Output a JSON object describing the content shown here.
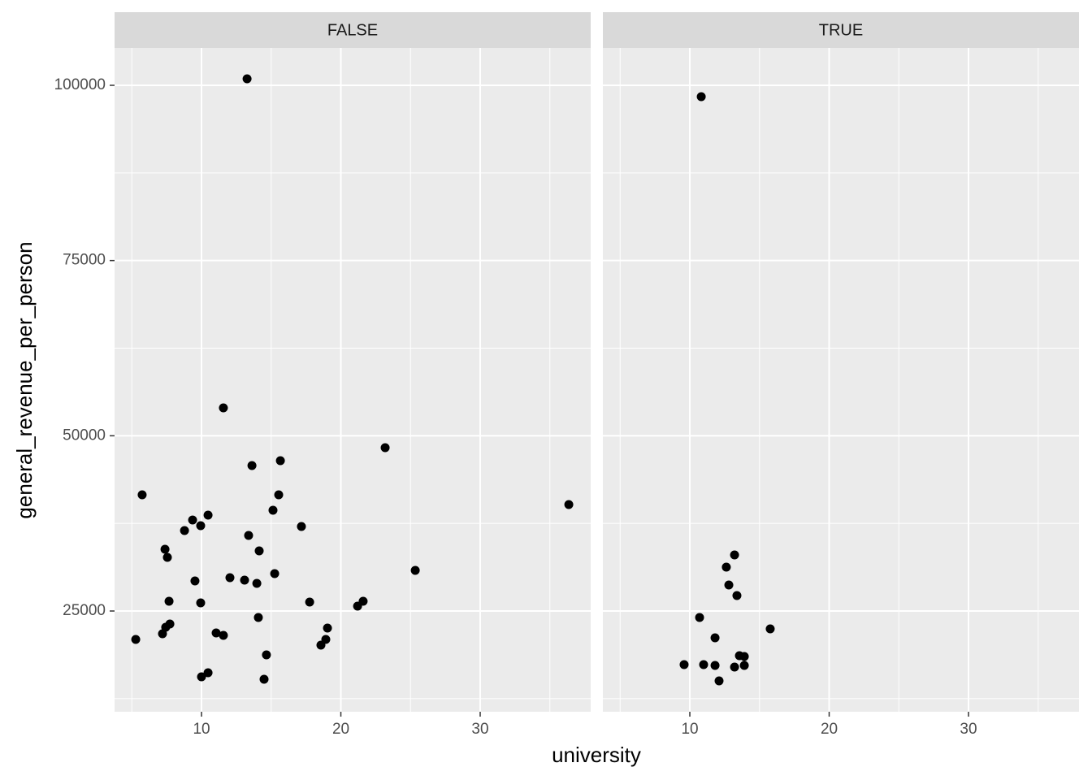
{
  "chart_data": [
    {
      "type": "scatter",
      "title": "FALSE",
      "x_label": "university",
      "y_label": "general_revenue_per_person",
      "color": "#000000",
      "grid": true,
      "xlim": [
        3.76,
        37.93
      ],
      "ylim": [
        10627,
        105332
      ],
      "xticks": [
        10,
        20,
        30
      ],
      "yticks": [
        25000,
        50000,
        75000,
        100000
      ],
      "minor_xticks": [
        5,
        15,
        25,
        35
      ],
      "minor_yticks": [
        12500,
        37500,
        62500,
        87500
      ],
      "x": [
        13.27,
        11.57,
        23.18,
        13.62,
        15.66,
        5.74,
        15.54,
        36.36,
        10.47,
        9.36,
        15.13,
        8.78,
        9.94,
        17.17,
        13.38,
        14.14,
        7.38,
        7.55,
        25.34,
        15.25,
        12.04,
        13.09,
        13.97,
        9.53,
        7.67,
        9.94,
        17.76,
        21.6,
        21.2,
        14.08,
        7.73,
        7.43,
        19.04,
        7.2,
        11.05,
        11.57,
        5.28,
        18.92,
        18.57,
        14.66,
        10.47,
        10.0,
        14.49
      ],
      "values": [
        100924,
        53979,
        48299,
        45749,
        46444,
        41576,
        41576,
        40185,
        38678,
        37983,
        39373,
        36476,
        37171,
        37055,
        35780,
        33578,
        33810,
        32650,
        30796,
        30332,
        29753,
        29405,
        28941,
        29289,
        26391,
        26159,
        26275,
        26391,
        25695,
        24073,
        23145,
        22682,
        22566,
        21754,
        21870,
        21522,
        20943,
        20943,
        20132,
        18741,
        16190,
        15611,
        15263
      ]
    },
    {
      "type": "scatter",
      "title": "TRUE",
      "color": "#000000",
      "grid": true,
      "xlim": [
        3.76,
        37.93
      ],
      "ylim": [
        10627,
        105332
      ],
      "xticks": [
        10,
        20,
        30
      ],
      "yticks": [
        25000,
        50000,
        75000,
        100000
      ],
      "minor_xticks": [
        5,
        15,
        25,
        35
      ],
      "minor_yticks": [
        12500,
        37500,
        62500,
        87500
      ],
      "x": [
        10.82,
        13.21,
        12.62,
        12.8,
        13.38,
        10.7,
        15.77,
        11.81,
        13.56,
        13.91,
        9.59,
        10.99,
        11.81,
        13.21,
        13.91,
        12.1
      ],
      "values": [
        98375,
        32998,
        31259,
        28709,
        27202,
        24073,
        22450,
        21175,
        18625,
        18509,
        17350,
        17350,
        17234,
        17002,
        17234,
        15031
      ]
    }
  ]
}
